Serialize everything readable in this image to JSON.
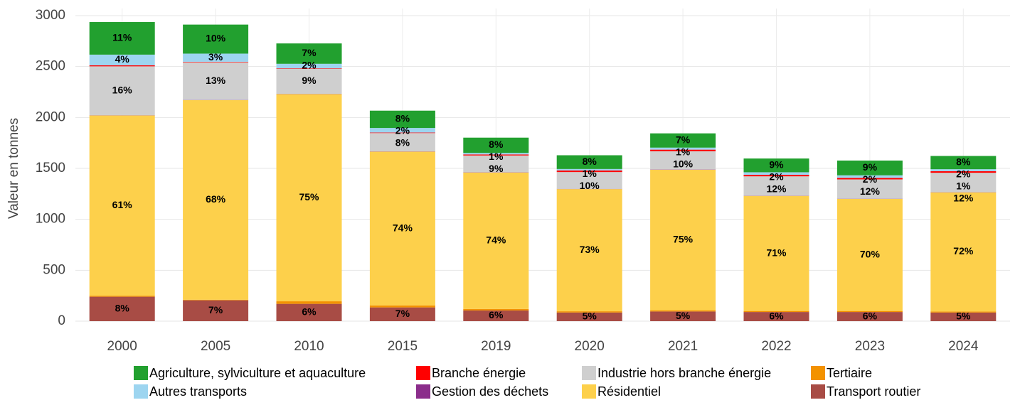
{
  "chart_data": {
    "type": "stacked_bar",
    "ylabel": "Valeur en tonnes",
    "categories": [
      "2000",
      "2005",
      "2010",
      "2015",
      "2019",
      "2020",
      "2021",
      "2022",
      "2023",
      "2024"
    ],
    "ylim": [
      0,
      3000
    ],
    "yticks": [
      0,
      500,
      1000,
      1500,
      2000,
      2500,
      3000
    ],
    "grid": true,
    "series": [
      {
        "name": "Transport routier",
        "color": "#a84c45",
        "values": [
          240,
          205,
          170,
          135,
          105,
          85,
          95,
          90,
          90,
          85
        ],
        "value_labels": [
          "8%",
          "7%",
          "6%",
          "7%",
          "6%",
          "5%",
          "5%",
          "6%",
          "6%",
          "5%"
        ]
      },
      {
        "name": "Tertiaire",
        "color": "#f39200",
        "values": [
          10,
          5,
          25,
          20,
          15,
          12,
          12,
          10,
          10,
          10
        ]
      },
      {
        "name": "Résidentiel",
        "color": "#fdd04b",
        "values": [
          1770,
          1960,
          2035,
          1510,
          1340,
          1200,
          1380,
          1130,
          1100,
          1170
        ],
        "value_labels": [
          "61%",
          "68%",
          "75%",
          "74%",
          "74%",
          "73%",
          "75%",
          "71%",
          "70%",
          "72%"
        ]
      },
      {
        "name": "Gestion des déchets",
        "color": "#8b2d8b",
        "values": [
          2,
          2,
          2,
          2,
          2,
          2,
          2,
          2,
          2,
          2
        ]
      },
      {
        "name": "Industrie hors branche énergie",
        "color": "#cfcfcf",
        "values": [
          480,
          370,
          245,
          180,
          165,
          165,
          180,
          190,
          190,
          190
        ],
        "value_labels": [
          "16%",
          "13%",
          "9%",
          "8%",
          "9%",
          "10%",
          "10%",
          "12%",
          "12%",
          "12%"
        ]
      },
      {
        "name": "Branche énergie",
        "color": "#ff0000",
        "values": [
          10,
          5,
          5,
          5,
          10,
          15,
          15,
          15,
          15,
          15
        ],
        "value_labels": [
          null,
          null,
          null,
          null,
          null,
          null,
          null,
          null,
          null,
          "1%"
        ]
      },
      {
        "name": "Autres transports",
        "color": "#9dd5f0",
        "values": [
          105,
          80,
          45,
          45,
          15,
          15,
          20,
          25,
          25,
          20
        ],
        "value_labels": [
          "4%",
          "3%",
          "2%",
          "2%",
          "1%",
          "1%",
          "1%",
          "2%",
          "2%",
          "2%"
        ]
      },
      {
        "name": "Agriculture, sylviculture et aquaculture",
        "color": "#22a02f",
        "values": [
          320,
          285,
          200,
          170,
          150,
          135,
          140,
          135,
          145,
          130
        ],
        "value_labels": [
          "11%",
          "10%",
          "7%",
          "8%",
          "8%",
          "8%",
          "7%",
          "9%",
          "9%",
          "8%"
        ]
      }
    ]
  }
}
